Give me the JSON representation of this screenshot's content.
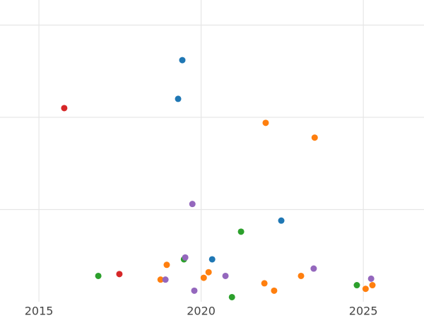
{
  "chart_data": {
    "type": "scatter",
    "xlim": [
      2013.8,
      2026.87
    ],
    "xticks": [
      2015,
      2020,
      2025
    ],
    "ylim": [
      0,
      3.272
    ],
    "yticks": [
      1,
      2,
      3
    ],
    "grid": true,
    "series": [
      {
        "color": "#1f77b4",
        "x": [
          2019.42,
          2019.29,
          2022.47,
          2020.34
        ],
        "values": [
          2.62,
          2.2,
          0.88,
          0.46
        ]
      },
      {
        "color": "#d62728",
        "x": [
          2015.78,
          2017.48
        ],
        "values": [
          2.1,
          0.3
        ]
      },
      {
        "color": "#ff7f0e",
        "x": [
          2021.99,
          2023.5,
          2018.94,
          2018.75,
          2020.23,
          2020.08,
          2021.95,
          2022.25,
          2023.08,
          2025.07,
          2025.28
        ],
        "values": [
          1.94,
          1.78,
          0.4,
          0.24,
          0.32,
          0.26,
          0.2,
          0.12,
          0.28,
          0.14,
          0.18
        ]
      },
      {
        "color": "#2ca02c",
        "x": [
          2021.23,
          2016.83,
          2019.47,
          2020.95,
          2024.8
        ],
        "values": [
          0.76,
          0.28,
          0.46,
          0.05,
          0.18
        ]
      },
      {
        "color": "#9467bd",
        "x": [
          2019.73,
          2019.51,
          2018.9,
          2019.79,
          2020.75,
          2023.47,
          2025.24
        ],
        "values": [
          1.06,
          0.48,
          0.24,
          0.12,
          0.28,
          0.36,
          0.25
        ]
      }
    ]
  }
}
